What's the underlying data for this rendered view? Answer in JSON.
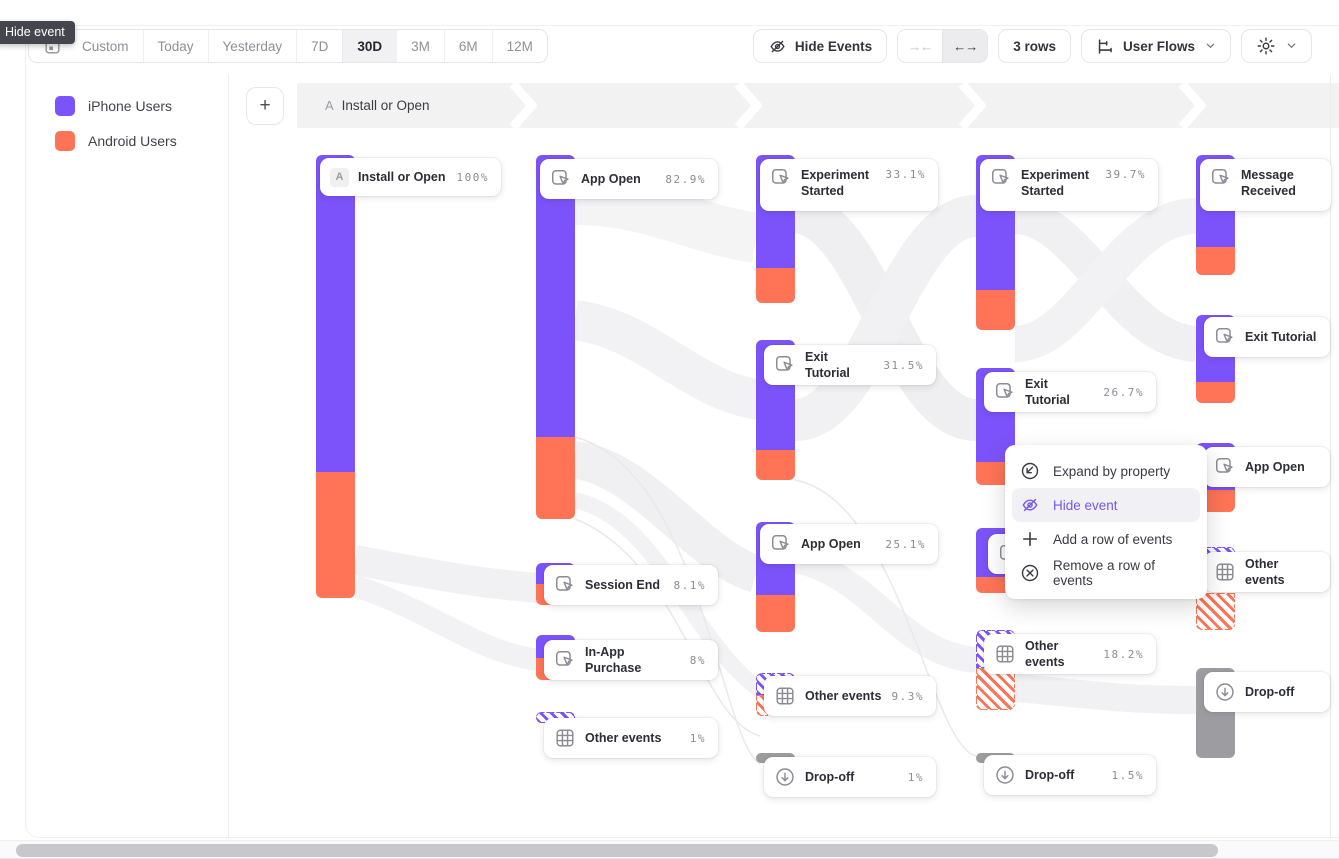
{
  "tooltip": {
    "label": "Hide event"
  },
  "toolbar": {
    "date_ranges": [
      "Custom",
      "Today",
      "Yesterday",
      "7D",
      "30D",
      "3M",
      "6M",
      "12M"
    ],
    "active_range": "30D",
    "hide_events_label": "Hide Events",
    "collapse_arrows": "→←",
    "expand_arrows": "←→",
    "rows_label": "3 rows",
    "view_selector_label": "User Flows"
  },
  "legend": {
    "items": [
      {
        "label": "iPhone Users",
        "color": "#7c53fa"
      },
      {
        "label": "Android Users",
        "color": "#ff7456"
      }
    ]
  },
  "flow_header": {
    "badge": "A",
    "label": "Install or Open"
  },
  "flow": {
    "columns": [
      {
        "nodes": [
          {
            "label": "Install or Open",
            "value": "100%",
            "badge": "A",
            "icon": "",
            "style": "solid"
          }
        ]
      },
      {
        "nodes": [
          {
            "label": "App Open",
            "value": "82.9%",
            "icon": "event",
            "style": "solid"
          },
          {
            "label": "Session End",
            "value": "8.1%",
            "icon": "event",
            "style": "solid"
          },
          {
            "label": "In-App Purchase",
            "value": "8%",
            "icon": "event",
            "style": "solid"
          },
          {
            "label": "Other events",
            "value": "1%",
            "icon": "grid",
            "style": "hatched"
          }
        ]
      },
      {
        "nodes": [
          {
            "label": "Experiment Started",
            "value": "33.1%",
            "icon": "event",
            "style": "solid"
          },
          {
            "label": "Exit Tutorial",
            "value": "31.5%",
            "icon": "event",
            "style": "solid"
          },
          {
            "label": "App Open",
            "value": "25.1%",
            "icon": "event",
            "style": "solid"
          },
          {
            "label": "Other events",
            "value": "9.3%",
            "icon": "grid",
            "style": "hatched"
          },
          {
            "label": "Drop-off",
            "value": "1%",
            "icon": "dropoff",
            "style": "gray"
          }
        ]
      },
      {
        "nodes": [
          {
            "label": "Experiment Started",
            "value": "39.7%",
            "icon": "event",
            "style": "solid"
          },
          {
            "label": "Exit Tutorial",
            "value": "26.7%",
            "icon": "event",
            "style": "solid"
          },
          {
            "label": "",
            "value": "",
            "icon": "event",
            "style": "solid"
          },
          {
            "label": "Other events",
            "value": "18.2%",
            "icon": "grid",
            "style": "hatched"
          },
          {
            "label": "Drop-off",
            "value": "1.5%",
            "icon": "dropoff",
            "style": "gray"
          }
        ]
      },
      {
        "nodes": [
          {
            "label": "Message Received",
            "value": "",
            "icon": "event",
            "style": "solid"
          },
          {
            "label": "Exit Tutorial",
            "value": "",
            "icon": "event",
            "style": "solid"
          },
          {
            "label": "App Open",
            "value": "",
            "icon": "event",
            "style": "solid"
          },
          {
            "label": "Other events",
            "value": "",
            "icon": "grid",
            "style": "hatched"
          },
          {
            "label": "Drop-off",
            "value": "",
            "icon": "dropoff",
            "style": "gray"
          }
        ]
      }
    ]
  },
  "context_menu": {
    "items": [
      {
        "label": "Expand by property",
        "icon": "expand-icon",
        "active": false
      },
      {
        "label": "Hide event",
        "icon": "eye-off-icon",
        "active": true
      },
      {
        "label": "Add a row of events",
        "icon": "plus-icon",
        "active": false
      },
      {
        "label": "Remove a row of events",
        "icon": "remove-icon",
        "active": false
      }
    ]
  },
  "colors": {
    "iphone_purple": "#7c53fa",
    "android_orange": "#ff7456",
    "dropoff_gray": "#9d9da1",
    "menu_highlight_text": "#7558e8"
  }
}
